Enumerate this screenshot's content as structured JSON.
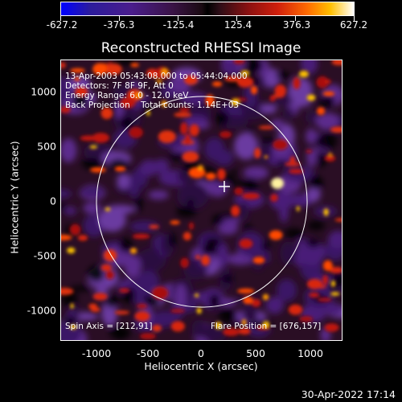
{
  "colorbar": {
    "ticks": [
      "-627.2",
      "-376.3",
      "-125.4",
      "125.4",
      "376.3",
      "627.2"
    ]
  },
  "title": "Reconstructed RHESSI Image",
  "info": {
    "line1": "13-Apr-2003 05:43:08.000 to 05:44:04.000",
    "line2": "Detectors: 7F 8F 9F, Att 0",
    "line3": "Energy Range: 6.0 - 12.0 keV",
    "line4": "Back Projection    Total counts: 1.14E+03",
    "spin_axis": "Spin Axis = [212,91]",
    "flare_position": "Flare Position = [676,157]"
  },
  "axes": {
    "xlabel": "Heliocentric X (arcsec)",
    "ylabel": "Heliocentric Y (arcsec)",
    "xticks": [
      "-1000",
      "-500",
      "0",
      "500",
      "1000"
    ],
    "yticks": [
      "1000",
      "500",
      "0",
      "-500",
      "-1000"
    ]
  },
  "timestamp": "30-Apr-2022 17:14",
  "colors": {
    "background": "#000000",
    "foreground": "#ffffff"
  }
}
